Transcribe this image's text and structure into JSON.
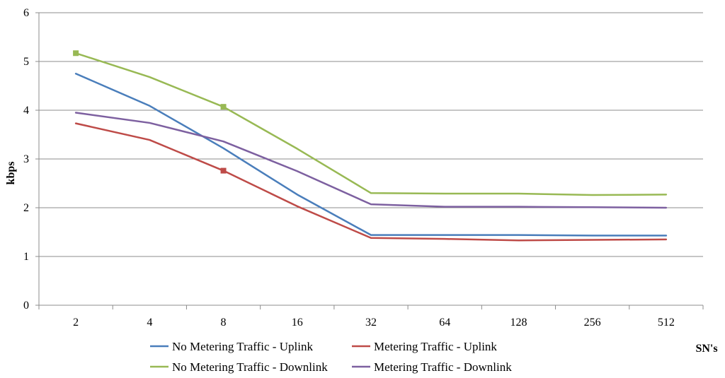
{
  "chart_data": {
    "type": "line",
    "title": "",
    "xlabel": "SN's",
    "ylabel": "kbps",
    "ylim": [
      0,
      6
    ],
    "yticks": [
      "0",
      "1",
      "2",
      "3",
      "4",
      "5",
      "6"
    ],
    "categories": [
      "2",
      "4",
      "8",
      "16",
      "32",
      "64",
      "128",
      "256",
      "512"
    ],
    "grid": "horizontal",
    "legend_position": "bottom",
    "series": [
      {
        "name": "No Metering Traffic - Uplink",
        "color": "#4a7ebb",
        "values": [
          4.75,
          4.09,
          3.22,
          2.27,
          1.44,
          1.44,
          1.44,
          1.43,
          1.43
        ]
      },
      {
        "name": "Metering Traffic - Uplink",
        "color": "#be4b48",
        "values": [
          3.73,
          3.39,
          2.76,
          2.03,
          1.38,
          1.36,
          1.33,
          1.34,
          1.35
        ],
        "markers": [
          2
        ]
      },
      {
        "name": "No Metering Traffic - Downlink",
        "color": "#98b954",
        "values": [
          5.17,
          4.68,
          4.07,
          3.21,
          2.3,
          2.29,
          2.29,
          2.26,
          2.27
        ],
        "markers": [
          0,
          2
        ]
      },
      {
        "name": "Metering Traffic - Downlink",
        "color": "#7d60a0",
        "values": [
          3.95,
          3.74,
          3.36,
          2.75,
          2.07,
          2.02,
          2.02,
          2.01,
          2.0
        ]
      }
    ]
  }
}
